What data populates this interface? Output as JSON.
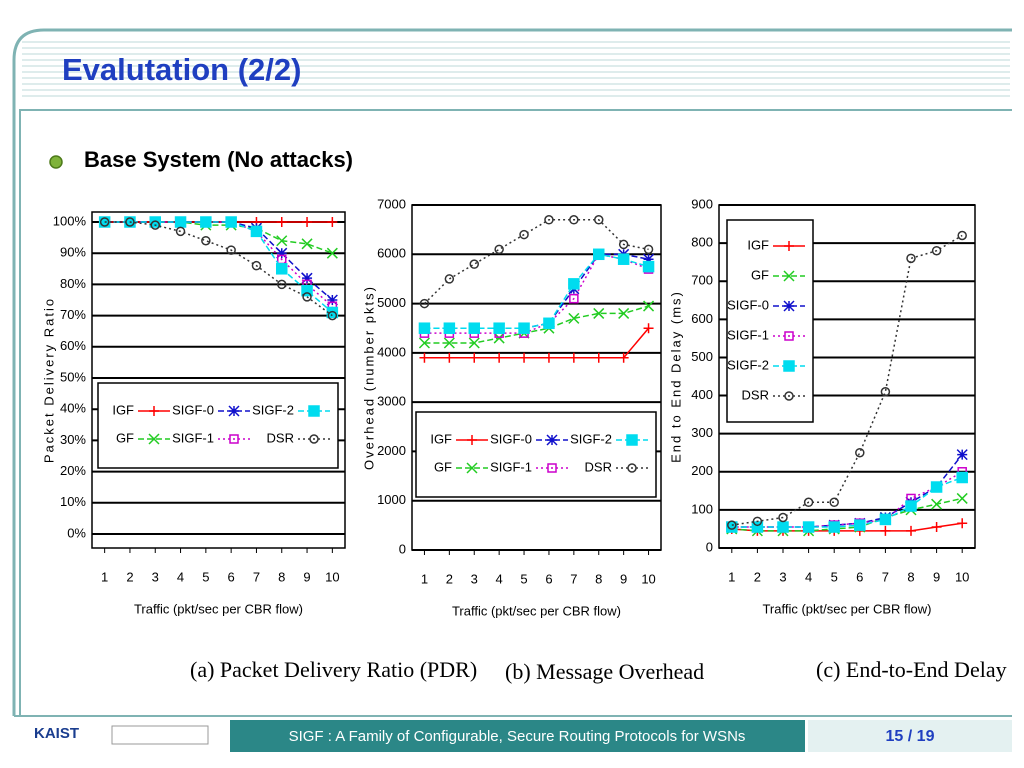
{
  "slide": {
    "title": "Evalutation (2/2)",
    "bullet": "Base System (No attacks)"
  },
  "footer": {
    "logo": "KAIST",
    "title": "SIGF : A Family of Configurable, Secure Routing Protocols for WSNs",
    "page": "15 / 19"
  },
  "chart_data": [
    {
      "type": "line",
      "caption": "(a) Packet Delivery Ratio (PDR)",
      "xlabel": "Traffic (pkt/sec per CBR flow)",
      "ylabel": "Packet Delivery Ratio",
      "x": [
        1,
        2,
        3,
        4,
        5,
        6,
        7,
        8,
        9,
        10
      ],
      "xlim": [
        0.5,
        10.5
      ],
      "xticks": [
        1,
        2,
        3,
        4,
        5,
        6,
        7,
        8,
        9,
        10
      ],
      "ylim": [
        0,
        100
      ],
      "yticks": [
        {
          "value": 0,
          "label": "0%"
        },
        {
          "value": 10,
          "label": "10%"
        },
        {
          "value": 20,
          "label": "20%"
        },
        {
          "value": 30,
          "label": "30%"
        },
        {
          "value": 40,
          "label": "40%"
        },
        {
          "value": 50,
          "label": "50%"
        },
        {
          "value": 60,
          "label": "60%"
        },
        {
          "value": 70,
          "label": "70%"
        },
        {
          "value": 80,
          "label": "80%"
        },
        {
          "value": 90,
          "label": "90%"
        },
        {
          "value": 100,
          "label": "100%"
        }
      ],
      "grid": true,
      "legend": "lower left",
      "series": [
        {
          "name": "IGF",
          "color": "#ff0000",
          "marker": "plus",
          "linestyle": "solid",
          "values": [
            100,
            100,
            100,
            100,
            100,
            100,
            100,
            100,
            100,
            100
          ]
        },
        {
          "name": "GF",
          "color": "#22cc22",
          "marker": "x",
          "linestyle": "dashed",
          "values": [
            100,
            100,
            100,
            100,
            99,
            99,
            98,
            94,
            93,
            90
          ]
        },
        {
          "name": "SIGF-0",
          "color": "#1010cc",
          "marker": "star",
          "linestyle": "dashed",
          "values": [
            100,
            100,
            100,
            100,
            100,
            100,
            98,
            90,
            82,
            75
          ]
        },
        {
          "name": "SIGF-1",
          "color": "#cc00cc",
          "marker": "square",
          "linestyle": "dotted",
          "values": [
            100,
            100,
            100,
            100,
            100,
            100,
            97,
            88,
            80,
            73
          ]
        },
        {
          "name": "SIGF-2",
          "color": "#00dcef",
          "marker": "filled-square",
          "linestyle": "dashed",
          "values": [
            100,
            100,
            100,
            100,
            100,
            100,
            97,
            85,
            78,
            71
          ]
        },
        {
          "name": "DSR",
          "color": "#333333",
          "marker": "circle",
          "linestyle": "dotted",
          "values": [
            100,
            100,
            99,
            97,
            94,
            91,
            86,
            80,
            76,
            70
          ]
        }
      ]
    },
    {
      "type": "line",
      "caption": "(b) Message Overhead",
      "xlabel": "Traffic  (pkt/sec per CBR flow)",
      "ylabel": "Overhead  (number pkts)",
      "x": [
        1,
        2,
        3,
        4,
        5,
        6,
        7,
        8,
        9,
        10
      ],
      "xlim": [
        0.5,
        10.5
      ],
      "xticks": [
        1,
        2,
        3,
        4,
        5,
        6,
        7,
        8,
        9,
        10
      ],
      "ylim": [
        0,
        7000
      ],
      "yticks": [
        0,
        1000,
        2000,
        3000,
        4000,
        5000,
        6000,
        7000
      ],
      "grid": true,
      "legend": "lower left",
      "series": [
        {
          "name": "IGF",
          "color": "#ff0000",
          "marker": "plus",
          "linestyle": "solid",
          "values": [
            3900,
            3900,
            3900,
            3900,
            3900,
            3900,
            3900,
            3900,
            3900,
            4500
          ]
        },
        {
          "name": "GF",
          "color": "#22cc22",
          "marker": "x",
          "linestyle": "dashed",
          "values": [
            4200,
            4200,
            4200,
            4300,
            4400,
            4500,
            4700,
            4800,
            4800,
            4950
          ]
        },
        {
          "name": "SIGF-0",
          "color": "#1010cc",
          "marker": "star",
          "linestyle": "dashed",
          "values": [
            4500,
            4500,
            4500,
            4500,
            4500,
            4600,
            5300,
            6000,
            6000,
            5900
          ]
        },
        {
          "name": "SIGF-1",
          "color": "#cc00cc",
          "marker": "square",
          "linestyle": "dotted",
          "values": [
            4400,
            4400,
            4400,
            4400,
            4400,
            4600,
            5100,
            6000,
            5900,
            5700
          ]
        },
        {
          "name": "SIGF-2",
          "color": "#00dcef",
          "marker": "filled-square",
          "linestyle": "dashed",
          "values": [
            4500,
            4500,
            4500,
            4500,
            4500,
            4600,
            5400,
            6000,
            5900,
            5750
          ]
        },
        {
          "name": "DSR",
          "color": "#333333",
          "marker": "circle",
          "linestyle": "dotted",
          "values": [
            5000,
            5500,
            5800,
            6100,
            6400,
            6700,
            6700,
            6700,
            6200,
            6100
          ]
        }
      ]
    },
    {
      "type": "line",
      "caption": "(c) End-to-End Delay",
      "xlabel": "Traffic  (pkt/sec per CBR flow)",
      "ylabel": "End to End Delay  (ms)",
      "x": [
        1,
        2,
        3,
        4,
        5,
        6,
        7,
        8,
        9,
        10
      ],
      "xlim": [
        0.5,
        10.5
      ],
      "xticks": [
        1,
        2,
        3,
        4,
        5,
        6,
        7,
        8,
        9,
        10
      ],
      "ylim": [
        0,
        900
      ],
      "yticks": [
        0,
        100,
        200,
        300,
        400,
        500,
        600,
        700,
        800,
        900
      ],
      "grid": true,
      "legend": "upper left",
      "series": [
        {
          "name": "IGF",
          "color": "#ff0000",
          "marker": "plus",
          "linestyle": "solid",
          "values": [
            50,
            45,
            45,
            45,
            45,
            45,
            45,
            45,
            55,
            65
          ]
        },
        {
          "name": "GF",
          "color": "#22cc22",
          "marker": "x",
          "linestyle": "dashed",
          "values": [
            50,
            45,
            45,
            45,
            50,
            55,
            80,
            100,
            115,
            130
          ]
        },
        {
          "name": "SIGF-0",
          "color": "#1010cc",
          "marker": "star",
          "linestyle": "dashed",
          "values": [
            55,
            55,
            55,
            55,
            60,
            65,
            80,
            120,
            160,
            245
          ]
        },
        {
          "name": "SIGF-1",
          "color": "#cc00cc",
          "marker": "square",
          "linestyle": "dotted",
          "values": [
            55,
            55,
            55,
            55,
            60,
            65,
            75,
            130,
            160,
            200
          ]
        },
        {
          "name": "SIGF-2",
          "color": "#00dcef",
          "marker": "filled-square",
          "linestyle": "dashed",
          "values": [
            55,
            55,
            55,
            55,
            55,
            60,
            75,
            110,
            160,
            185
          ]
        },
        {
          "name": "DSR",
          "color": "#333333",
          "marker": "circle",
          "linestyle": "dotted",
          "values": [
            60,
            70,
            80,
            120,
            120,
            250,
            410,
            760,
            780,
            820
          ]
        }
      ]
    }
  ]
}
